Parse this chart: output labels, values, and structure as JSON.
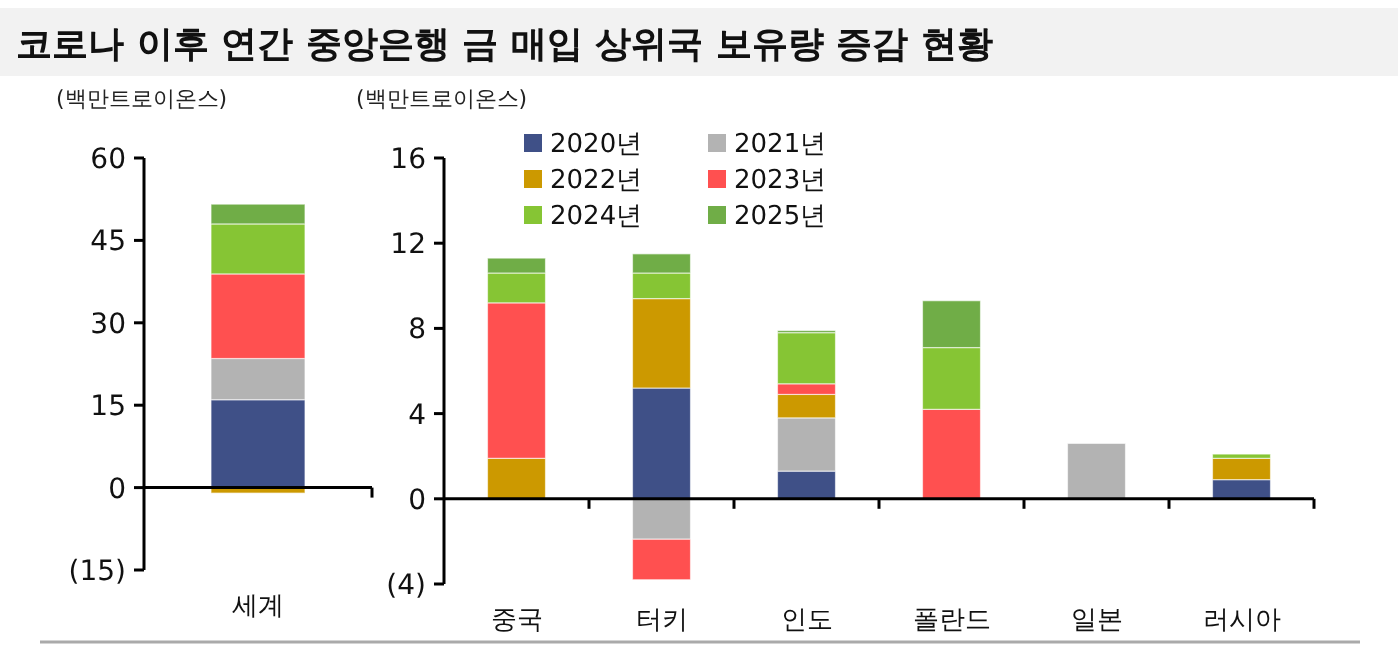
{
  "chart_data": [
    {
      "type": "bar",
      "stacked": true,
      "title": "코로나 이후 연간 중앙은행 금 매입 상위국 보유량 증감 현황",
      "ylabel": "(백만트로이온스)",
      "categories": [
        "세계"
      ],
      "ylim": [
        -15,
        60
      ],
      "yticks": [
        {
          "value": -15,
          "label": "(15)"
        },
        0,
        15,
        30,
        45,
        60
      ],
      "legend": false,
      "series": [
        {
          "color": "#3f5087",
          "values": [
            16.0
          ]
        },
        {
          "color": "#b3b3b3",
          "values": [
            7.5
          ]
        },
        {
          "color": "#cc9900",
          "values": [
            -1.0
          ]
        },
        {
          "color": "#ff5050",
          "values": [
            15.4
          ]
        },
        {
          "color": "#86c534",
          "values": [
            9.1
          ]
        },
        {
          "color": "#70ad47",
          "values": [
            3.6
          ]
        }
      ]
    },
    {
      "type": "bar",
      "stacked": true,
      "ylabel": "(백만트로이온스)",
      "categories": [
        "중국",
        "터키",
        "인도",
        "폴란드",
        "일본",
        "러시아"
      ],
      "ylim": [
        -4,
        16
      ],
      "yticks": [
        {
          "value": -4,
          "label": "(4)"
        },
        0,
        4,
        8,
        12,
        16
      ],
      "legend": "top",
      "series": [
        {
          "name": "2020년",
          "color": "#3f5087",
          "values": [
            0,
            5.2,
            1.3,
            0,
            0,
            0.9
          ]
        },
        {
          "name": "2021년",
          "color": "#b3b3b3",
          "values": [
            0,
            -1.9,
            2.5,
            0,
            2.6,
            0
          ]
        },
        {
          "name": "2022년",
          "color": "#cc9900",
          "values": [
            1.9,
            4.2,
            1.1,
            0,
            0,
            1.0
          ]
        },
        {
          "name": "2023년",
          "color": "#ff5050",
          "values": [
            7.3,
            -1.9,
            0.5,
            4.2,
            0,
            0
          ]
        },
        {
          "name": "2024년",
          "color": "#86c534",
          "values": [
            1.4,
            1.2,
            2.4,
            2.9,
            0,
            0.2
          ]
        },
        {
          "name": "2025년",
          "color": "#70ad47",
          "values": [
            0.7,
            0.9,
            0.1,
            2.2,
            0,
            0
          ]
        }
      ]
    }
  ]
}
